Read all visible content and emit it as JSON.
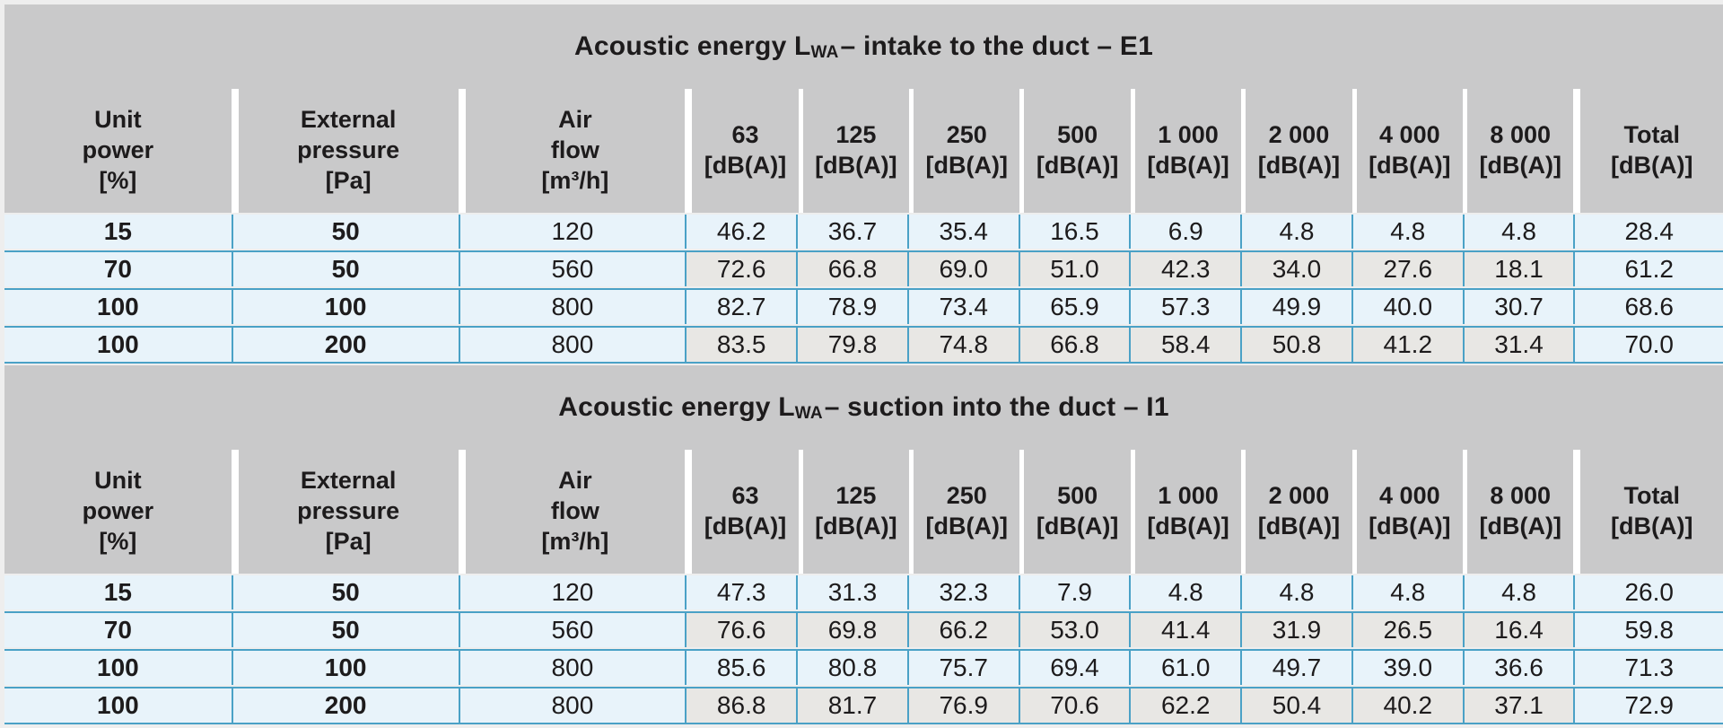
{
  "colors": {
    "page_bg": "#eeeeee",
    "header_gray": "#c9c9ca",
    "row_blue": "#e8f3fa",
    "row_gray": "#e8e7e4",
    "line_blue": "#4aa1c6",
    "separator_white": "#ffffff",
    "text": "#1d1b1c"
  },
  "cols": [
    "Unit\npower\n[%]",
    "External\npressure\n[Pa]",
    "Air\nflow\n[m³/h]",
    "63\n[dB(A)]",
    "125\n[dB(A)]",
    "250\n[dB(A)]",
    "500\n[dB(A)]",
    "1 000\n[dB(A)]",
    "2 000\n[dB(A)]",
    "4 000\n[dB(A)]",
    "8 000\n[dB(A)]",
    "Total\n[dB(A)]"
  ],
  "tables": [
    {
      "title": {
        "prefix": "Acoustic energy L",
        "subscript": "WA",
        "suffix": " – intake to the duct – E1"
      },
      "rows": [
        [
          "15",
          "50",
          "120",
          "46.2",
          "36.7",
          "35.4",
          "16.5",
          "6.9",
          "4.8",
          "4.8",
          "4.8",
          "28.4"
        ],
        [
          "70",
          "50",
          "560",
          "72.6",
          "66.8",
          "69.0",
          "51.0",
          "42.3",
          "34.0",
          "27.6",
          "18.1",
          "61.2"
        ],
        [
          "100",
          "100",
          "800",
          "82.7",
          "78.9",
          "73.4",
          "65.9",
          "57.3",
          "49.9",
          "40.0",
          "30.7",
          "68.6"
        ],
        [
          "100",
          "200",
          "800",
          "83.5",
          "79.8",
          "74.8",
          "66.8",
          "58.4",
          "50.8",
          "41.2",
          "31.4",
          "70.0"
        ]
      ]
    },
    {
      "title": {
        "prefix": "Acoustic energy L",
        "subscript": "WA",
        "suffix": " – suction into the duct – I1"
      },
      "rows": [
        [
          "15",
          "50",
          "120",
          "47.3",
          "31.3",
          "32.3",
          "7.9",
          "4.8",
          "4.8",
          "4.8",
          "4.8",
          "26.0"
        ],
        [
          "70",
          "50",
          "560",
          "76.6",
          "69.8",
          "66.2",
          "53.0",
          "41.4",
          "31.9",
          "26.5",
          "16.4",
          "59.8"
        ],
        [
          "100",
          "100",
          "800",
          "85.6",
          "80.8",
          "75.7",
          "69.4",
          "61.0",
          "49.7",
          "39.0",
          "36.6",
          "71.3"
        ],
        [
          "100",
          "200",
          "800",
          "86.8",
          "81.7",
          "76.9",
          "70.6",
          "62.2",
          "50.4",
          "40.2",
          "37.1",
          "72.9"
        ]
      ]
    }
  ]
}
